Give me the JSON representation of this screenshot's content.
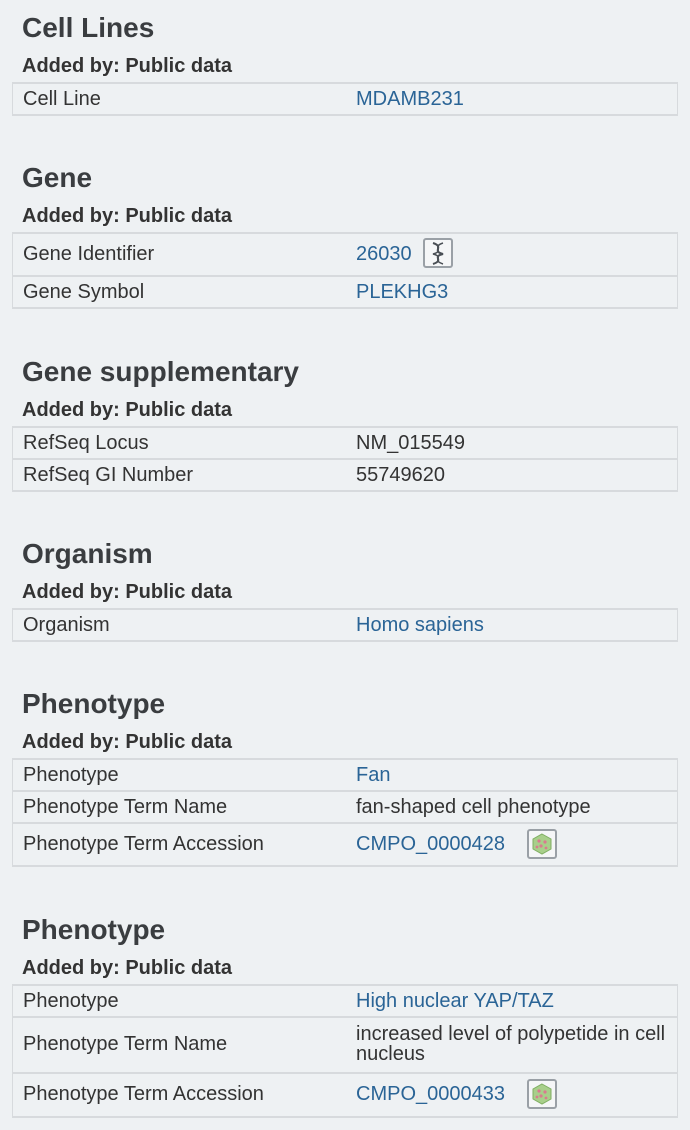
{
  "sections": [
    {
      "title": "Cell Lines",
      "added_by": "Added by: Public data",
      "rows": [
        {
          "key": "Cell Line",
          "value": "MDAMB231"
        }
      ]
    },
    {
      "title": "Gene",
      "added_by": "Added by: Public data",
      "rows": [
        {
          "key": "Gene Identifier",
          "value": "26030",
          "icon": "dna-helix-icon"
        },
        {
          "key": "Gene Symbol",
          "value": "PLEKHG3"
        }
      ]
    },
    {
      "title": "Gene supplementary",
      "added_by": "Added by: Public data",
      "rows": [
        {
          "key": "RefSeq Locus",
          "value": "NM_015549"
        },
        {
          "key": "RefSeq GI Number",
          "value": "55749620"
        }
      ]
    },
    {
      "title": "Organism",
      "added_by": "Added by: Public data",
      "rows": [
        {
          "key": "Organism",
          "value": "Homo sapiens"
        }
      ]
    },
    {
      "title": "Phenotype",
      "added_by": "Added by: Public data",
      "rows": [
        {
          "key": "Phenotype",
          "value": "Fan"
        },
        {
          "key": "Phenotype Term Name",
          "value": "fan-shaped cell phenotype"
        },
        {
          "key": "Phenotype Term Accession",
          "value": "CMPO_0000428",
          "icon": "cmpo-ontology-icon"
        }
      ]
    },
    {
      "title": "Phenotype",
      "added_by": "Added by: Public data",
      "rows": [
        {
          "key": "Phenotype",
          "value": "High nuclear YAP/TAZ"
        },
        {
          "key": "Phenotype Term Name",
          "value": "increased level of polypetide in cell nucleus"
        },
        {
          "key": "Phenotype Term Accession",
          "value": "CMPO_0000433",
          "icon": "cmpo-ontology-icon"
        }
      ]
    }
  ],
  "colors": {
    "link": "#2a6496",
    "heading": "#3a3d40",
    "background": "#eef1f3",
    "border": "#d7dadd"
  }
}
